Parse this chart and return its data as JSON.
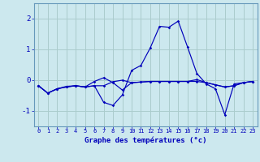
{
  "xlabel": "Graphe des températures (°c)",
  "background_color": "#cce8ee",
  "grid_color": "#aacccc",
  "line_color": "#0000bb",
  "border_color": "#6699bb",
  "xlim": [
    -0.5,
    23.5
  ],
  "ylim": [
    -1.5,
    2.5
  ],
  "yticks": [
    -1,
    0,
    1,
    2
  ],
  "ytick_labels": [
    "-1",
    "0",
    "1",
    "2"
  ],
  "xticks": [
    0,
    1,
    2,
    3,
    4,
    5,
    6,
    7,
    8,
    9,
    10,
    11,
    12,
    13,
    14,
    15,
    16,
    17,
    18,
    19,
    20,
    21,
    22,
    23
  ],
  "series": [
    {
      "x": [
        0,
        1,
        2,
        3,
        4,
        5,
        6,
        7,
        8,
        9,
        10,
        11,
        12,
        13,
        14,
        15,
        16,
        17,
        18,
        19,
        20,
        21,
        22,
        23
      ],
      "y": [
        -0.18,
        -0.42,
        -0.28,
        -0.22,
        -0.18,
        -0.22,
        -0.18,
        -0.18,
        -0.05,
        0.0,
        -0.08,
        -0.06,
        -0.04,
        -0.04,
        -0.04,
        -0.04,
        -0.04,
        -0.04,
        -0.08,
        -0.15,
        -0.22,
        -0.18,
        -0.08,
        -0.04
      ]
    },
    {
      "x": [
        0,
        1,
        2,
        3,
        4,
        5,
        6,
        7,
        8,
        9,
        10,
        11,
        12,
        13,
        14,
        15,
        16,
        17,
        18,
        19,
        20,
        21,
        22,
        23
      ],
      "y": [
        -0.18,
        -0.42,
        -0.28,
        -0.2,
        -0.18,
        -0.22,
        -0.18,
        -0.72,
        -0.82,
        -0.48,
        0.32,
        0.48,
        1.05,
        1.75,
        1.72,
        1.92,
        1.08,
        0.22,
        -0.12,
        -0.28,
        -1.12,
        -0.12,
        -0.08,
        -0.04
      ]
    },
    {
      "x": [
        0,
        1,
        2,
        3,
        4,
        5,
        6,
        7,
        8,
        9,
        10,
        11,
        12,
        13,
        14,
        15,
        16,
        17,
        18,
        19,
        20,
        21,
        22,
        23
      ],
      "y": [
        -0.18,
        -0.42,
        -0.28,
        -0.22,
        -0.18,
        -0.22,
        -0.04,
        0.08,
        -0.08,
        -0.32,
        -0.08,
        -0.06,
        -0.04,
        -0.04,
        -0.04,
        -0.04,
        -0.04,
        0.02,
        -0.08,
        -0.15,
        -0.22,
        -0.18,
        -0.08,
        -0.04
      ]
    }
  ]
}
